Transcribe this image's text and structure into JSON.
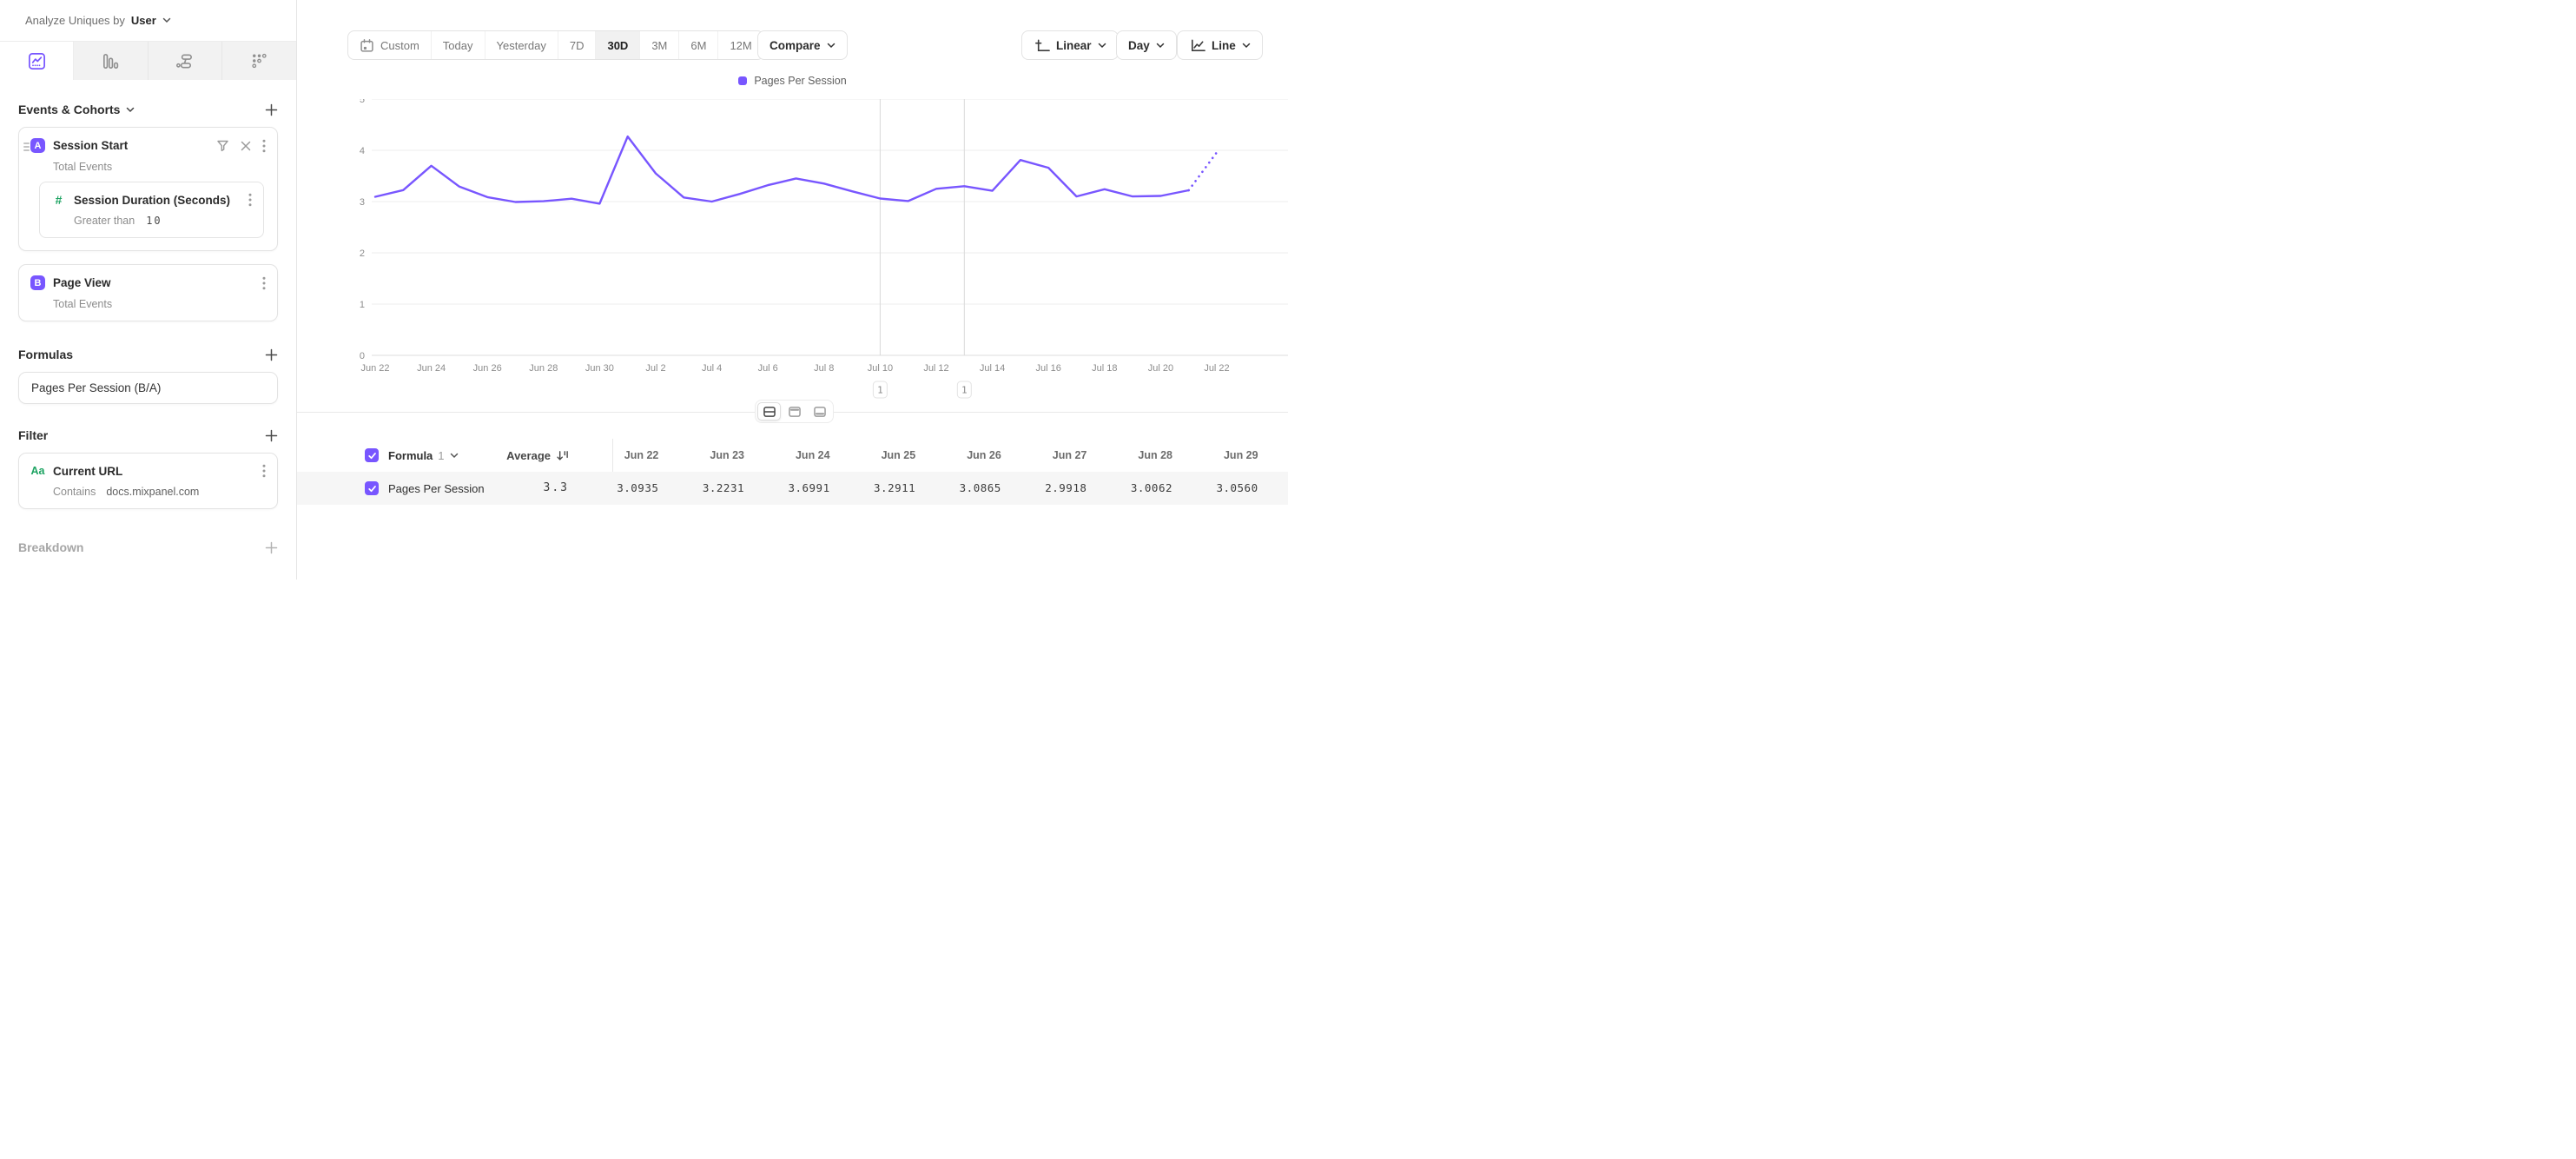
{
  "analyze_bar": {
    "prefix": "Analyze Uniques by",
    "selected": "User"
  },
  "sidebar": {
    "tabs": [
      {
        "name": "insights-line-tab",
        "active": true
      },
      {
        "name": "bar-chart-tab",
        "active": false
      },
      {
        "name": "flows-tab",
        "active": false
      },
      {
        "name": "pyramid-dots-tab",
        "active": false
      }
    ],
    "events": {
      "title": "Events & Cohorts",
      "items": [
        {
          "badge": "A",
          "title": "Session Start",
          "detail": "Total Events",
          "property": {
            "icon": "number",
            "title": "Session Duration (Seconds)",
            "operator": "Greater than",
            "value": "10"
          }
        },
        {
          "badge": "B",
          "title": "Page View",
          "detail": "Total Events"
        }
      ]
    },
    "formulas": {
      "title": "Formulas",
      "items": [
        {
          "title": "Pages Per Session (B/A)"
        }
      ]
    },
    "filter": {
      "title": "Filter",
      "items": [
        {
          "icon": "Aa",
          "title": "Current URL",
          "operator": "Contains",
          "value": "docs.mixpanel.com"
        }
      ]
    },
    "breakdown": {
      "title": "Breakdown"
    }
  },
  "toolbar": {
    "ranges": [
      "Custom",
      "Today",
      "Yesterday",
      "7D",
      "30D",
      "3M",
      "6M",
      "12M"
    ],
    "active_range": "30D",
    "compare_label": "Compare",
    "scale_label": "Linear",
    "interval_label": "Day",
    "chart_type_label": "Line"
  },
  "chart_data": {
    "type": "line",
    "title": "",
    "x": [
      "Jun 22",
      "Jun 23",
      "Jun 24",
      "Jun 25",
      "Jun 26",
      "Jun 27",
      "Jun 28",
      "Jun 29",
      "Jun 30",
      "Jul 1",
      "Jul 2",
      "Jul 3",
      "Jul 4",
      "Jul 5",
      "Jul 6",
      "Jul 7",
      "Jul 8",
      "Jul 9",
      "Jul 10",
      "Jul 11",
      "Jul 12",
      "Jul 13",
      "Jul 14",
      "Jul 15",
      "Jul 16",
      "Jul 17",
      "Jul 18",
      "Jul 19",
      "Jul 20",
      "Jul 21",
      "Jul 22"
    ],
    "series": [
      {
        "name": "Pages Per Session",
        "color": "#7856FF",
        "values": [
          3.0935,
          3.2231,
          3.6991,
          3.2911,
          3.0865,
          2.9918,
          3.0062,
          3.056,
          2.96,
          4.27,
          3.55,
          3.08,
          3.0,
          3.15,
          3.32,
          3.45,
          3.35,
          3.2,
          3.06,
          3.01,
          3.25,
          3.3,
          3.21,
          3.81,
          3.66,
          3.1,
          3.24,
          3.1,
          3.11,
          3.22,
          3.96
        ]
      }
    ],
    "ylim": [
      0,
      5
    ],
    "yticks": [
      0,
      1,
      2,
      3,
      4,
      5
    ],
    "x_tick_every": 2,
    "incomplete_last_segment": true,
    "annotations": [
      {
        "x_index": 18,
        "x_label": "Jul 10",
        "label": "1"
      },
      {
        "x_index": 21,
        "x_label": "Jul 13",
        "label": "1"
      }
    ],
    "legend": [
      {
        "label": "Pages Per Session",
        "color": "#7856FF"
      }
    ],
    "grid": true,
    "legend_position": "top-center"
  },
  "view_toggles": [
    {
      "name": "chart-and-table",
      "active": true
    },
    {
      "name": "chart-only",
      "active": false
    },
    {
      "name": "table-only",
      "active": false
    }
  ],
  "table": {
    "header_checked": true,
    "group_label": "Formula",
    "group_index": "1",
    "average_label": "Average",
    "columns": [
      "Jun 22",
      "Jun 23",
      "Jun 24",
      "Jun 25",
      "Jun 26",
      "Jun 27",
      "Jun 28",
      "Jun 29"
    ],
    "rows": [
      {
        "checked": true,
        "name": "Pages Per Session",
        "average": "3.3",
        "values": [
          "3.0935",
          "3.2231",
          "3.6991",
          "3.2911",
          "3.0865",
          "2.9918",
          "3.0062",
          "3.0560"
        ]
      }
    ]
  },
  "colors": {
    "accent": "#7856FF",
    "green": "#1DA362"
  }
}
